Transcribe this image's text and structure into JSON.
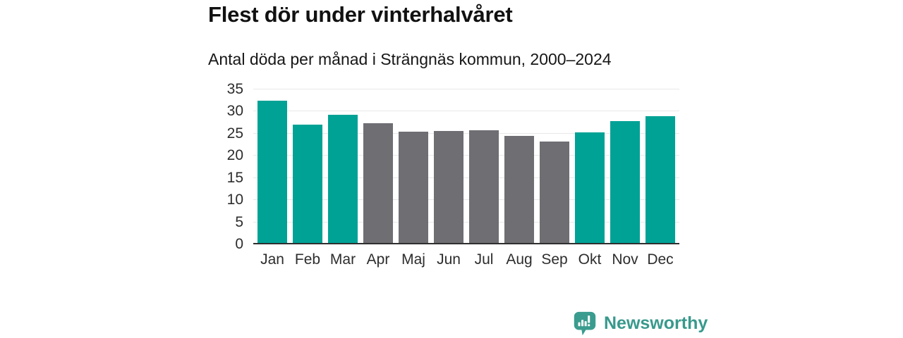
{
  "header": {
    "title": "Flest dör under vinterhalvåret",
    "subtitle": "Antal döda per månad i Strängnäs kommun, 2000–2024"
  },
  "footer": {
    "brand_name": "Newsworthy",
    "logo_icon": "newsworthy-speech-bubble-barchart-icon"
  },
  "colors": {
    "winter_bar": "#00a296",
    "summer_bar": "#6e6e73",
    "axis_line": "#2f2f2f",
    "gridline": "#e8e8e8",
    "title_text": "#111111",
    "tick_text": "#2d2d2d",
    "brand": "#38998c"
  },
  "chart_data": {
    "type": "bar",
    "title": "Flest dör under vinterhalvåret",
    "subtitle": "Antal döda per månad i Strängnäs kommun, 2000–2024",
    "categories": [
      "Jan",
      "Feb",
      "Mar",
      "Apr",
      "Maj",
      "Jun",
      "Jul",
      "Aug",
      "Sep",
      "Okt",
      "Nov",
      "Dec"
    ],
    "values": [
      32.2,
      26.7,
      28.9,
      27.1,
      25.1,
      25.3,
      25.4,
      24.2,
      22.9,
      25.0,
      27.6,
      28.7
    ],
    "bar_colors": [
      "#00a296",
      "#00a296",
      "#00a296",
      "#6e6e73",
      "#6e6e73",
      "#6e6e73",
      "#6e6e73",
      "#6e6e73",
      "#6e6e73",
      "#00a296",
      "#00a296",
      "#00a296"
    ],
    "xlabel": "",
    "ylabel": "",
    "ylim": [
      0,
      35
    ],
    "yticks": [
      0,
      5,
      10,
      15,
      20,
      25,
      30,
      35
    ],
    "grid": true,
    "legend": false
  }
}
